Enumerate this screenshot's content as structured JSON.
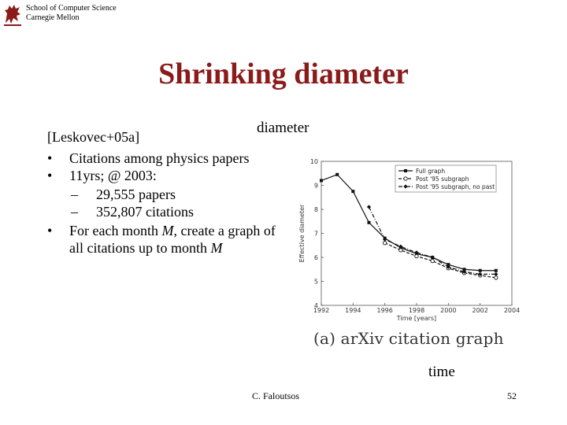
{
  "header": {
    "school_line1": "School of Computer Science",
    "school_line2": "Carnegie Mellon",
    "logo_icon": "griffin-icon"
  },
  "slide": {
    "title": "Shrinking diameter",
    "reference": "[Leskovec+05a]",
    "diameter_label": "diameter",
    "time_label": "time",
    "bullets": [
      {
        "text": "Citations among physics papers"
      },
      {
        "text": "11yrs; @ 2003:"
      },
      {
        "sub": "29,555 papers"
      },
      {
        "sub": "352,807 citations"
      },
      {
        "text_before": "For each month ",
        "italic1": "M",
        "text_mid": ", create a graph of all citations up to month ",
        "italic2": "M"
      }
    ]
  },
  "footer": {
    "author": "C. Faloutsos",
    "page": "52"
  },
  "chart_data": {
    "type": "line",
    "caption": "(a) arXiv citation graph",
    "xlabel": "Time [years]",
    "ylabel": "Effective diameter",
    "xlim": [
      1992,
      2004
    ],
    "ylim": [
      4,
      10
    ],
    "xticks": [
      "1992",
      "1994",
      "1996",
      "1998",
      "2000",
      "2002",
      "2004"
    ],
    "yticks": [
      "4",
      "5",
      "6",
      "7",
      "8",
      "9",
      "10"
    ],
    "legend_position": "top-right",
    "series": [
      {
        "name": "Full graph",
        "style": "solid",
        "marker": "square",
        "x": [
          1992,
          1993,
          1994,
          1995,
          1996,
          1997,
          1998,
          1999,
          2000,
          2001,
          2002,
          2003
        ],
        "y": [
          9.2,
          9.45,
          8.75,
          7.45,
          6.8,
          6.4,
          6.15,
          6.0,
          5.7,
          5.5,
          5.45,
          5.45
        ]
      },
      {
        "name": "Post '95 subgraph",
        "style": "dashed",
        "marker": "circle",
        "x": [
          1996,
          1997,
          1998,
          1999,
          2000,
          2001,
          2002,
          2003
        ],
        "y": [
          6.6,
          6.3,
          6.05,
          5.85,
          5.55,
          5.35,
          5.25,
          5.15
        ]
      },
      {
        "name": "Post '95 subgraph, no past",
        "style": "dashdot",
        "marker": "diamond",
        "x": [
          1995,
          1996,
          1997,
          1998,
          1999,
          2000,
          2001,
          2002,
          2003
        ],
        "y": [
          8.1,
          6.75,
          6.45,
          6.2,
          6.0,
          5.6,
          5.4,
          5.3,
          5.3
        ]
      }
    ]
  }
}
